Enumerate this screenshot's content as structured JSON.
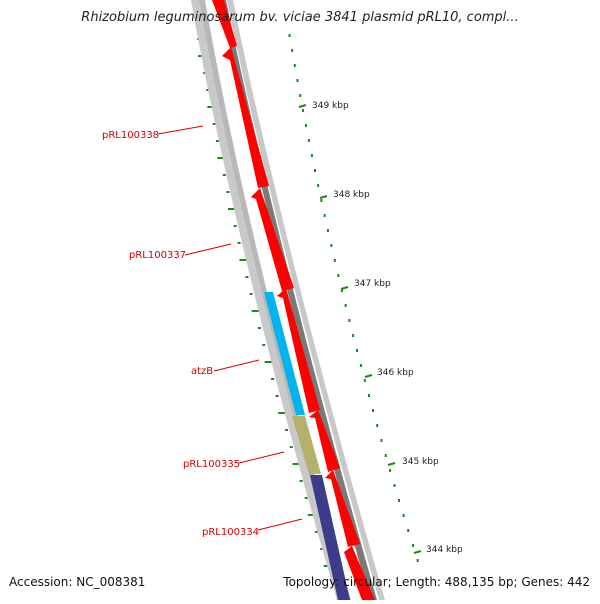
{
  "title": "Rhizobium leguminosarum bv. viciae 3841 plasmid pRL10, compl...",
  "footer": {
    "accession": "Accession: NC_008381",
    "summary": "Topology: circular; Length: 488,135 bp; Genes: 442"
  },
  "colors": {
    "forward_cds": "#ff0000",
    "backbone": "#c0c0c0",
    "outer_track": "#808080",
    "gc_skew": "#1a8a1a",
    "atzB": "#00b4f0",
    "pRL100335": "#b4b06e",
    "pRL100334": "#3c3c8a",
    "label": "#d40000"
  },
  "gene_labels": [
    {
      "name": "pRL100338"
    },
    {
      "name": "pRL100337"
    },
    {
      "name": "atzB"
    },
    {
      "name": "pRL100335"
    },
    {
      "name": "pRL100334"
    }
  ],
  "ticks": [
    {
      "label": "349 kbp"
    },
    {
      "label": "348 kbp"
    },
    {
      "label": "347 kbp"
    },
    {
      "label": "346 kbp"
    },
    {
      "label": "345 kbp"
    },
    {
      "label": "344 kbp"
    }
  ]
}
